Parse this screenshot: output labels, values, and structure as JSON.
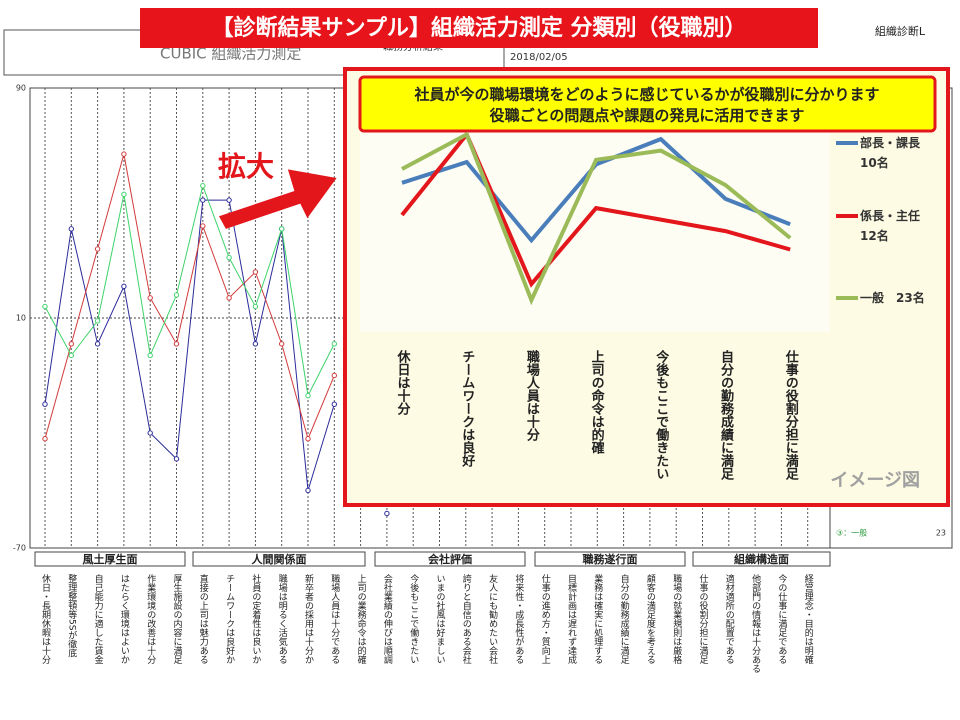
{
  "banner": "【診断結果サンプル】組織活力測定 分類別（役職別）",
  "corner_label": "組織診断L",
  "report": {
    "title": "CUBIC 組織活力測定",
    "subtitle": "職務分析結果",
    "date": "2018/02/05"
  },
  "groups": [
    "風土厚生面",
    "人間関係面",
    "会社評価",
    "職務遂行面",
    "組織構造面"
  ],
  "bg_legend": {
    "label": "③：一般",
    "count": "23"
  },
  "zoom_label": "拡大",
  "callout": [
    "社員が今の職場環境をどのように感じているかが役職別に分かります",
    "役職ごとの問題点や課題の発見に活用できます"
  ],
  "image_note": "イメージ図",
  "chart_data": [
    {
      "type": "line",
      "categories": [
        "休日・長期休暇は十分",
        "整理整頓等5Sが徹底",
        "自己能力に適した賃金",
        "はたらく環境はよいか",
        "作業環境の改善は十分",
        "厚生施設の内容に満足",
        "直接の上司は魅力ある",
        "チームワークは良好か",
        "社員の定着性は良いか",
        "職場は明るく活気ある",
        "新卒者の採用は十分か",
        "職場人員は十分である",
        "上司の業務命令は的確",
        "会社業績の伸びは順調",
        "今後もここで働きたい",
        "いまの社風は好ましい",
        "誇りと自信のある会社",
        "友人にも勧めたい会社",
        "将来性・成長性がある",
        "仕事の進め方・質向上",
        "目標計画は遅れず達成",
        "業務は確実に処理する",
        "自分の勤務成績に満足",
        "顧客の満足度を考える",
        "職場の就業規則は厳格",
        "仕事の役割分担に満足",
        "適材適所の配置である",
        "他部門の情報は十分ある",
        "今の仕事に満足である",
        "経営理念・目的は明確"
      ],
      "ylim": [
        -70,
        90
      ],
      "yticks": [
        -70,
        10,
        90
      ],
      "grid": true,
      "series": [
        {
          "color": "#2b2b9b",
          "values": [
            -20,
            41,
            1,
            21,
            -30,
            -39,
            51,
            51,
            1,
            41,
            -50,
            -20,
            null,
            -58,
            null,
            null,
            null,
            null,
            null,
            null,
            null,
            null,
            null,
            null,
            null,
            null,
            null,
            null,
            null,
            null
          ]
        },
        {
          "color": "#d23a3a",
          "values": [
            -32,
            1,
            34,
            67,
            17,
            1,
            42,
            17,
            26,
            1,
            -32,
            -10,
            null,
            null,
            null,
            null,
            null,
            null,
            null,
            null,
            null,
            null,
            null,
            null,
            null,
            null,
            null,
            null,
            null,
            null
          ]
        },
        {
          "color": "#3ed36a",
          "values": [
            14,
            -3,
            9,
            53,
            -3,
            18,
            56,
            31,
            14,
            41,
            -17,
            1,
            null,
            null,
            null,
            null,
            null,
            null,
            null,
            null,
            null,
            null,
            null,
            null,
            null,
            null,
            null,
            null,
            null,
            null
          ]
        }
      ]
    },
    {
      "type": "line",
      "categories": [
        "休日は十分",
        "チームワークは良好",
        "職場人員は十分",
        "上司の命令は的確",
        "今後もここで働きたい",
        "自分の勤務成績に満足",
        "仕事の役割分担に満足"
      ],
      "ylim": [
        0,
        100
      ],
      "series": [
        {
          "name": "部長・課長\n10名",
          "color": "#4a7ebb",
          "values": [
            64,
            73,
            39,
            72,
            83,
            57,
            46
          ]
        },
        {
          "name": "係長・主任\n12名",
          "color": "#e3161c",
          "values": [
            50,
            85,
            20,
            53,
            48,
            43,
            35
          ]
        },
        {
          "name": "一般　23名",
          "color": "#9bbb59",
          "values": [
            70,
            85,
            13,
            74,
            78,
            63,
            40
          ]
        }
      ]
    }
  ]
}
